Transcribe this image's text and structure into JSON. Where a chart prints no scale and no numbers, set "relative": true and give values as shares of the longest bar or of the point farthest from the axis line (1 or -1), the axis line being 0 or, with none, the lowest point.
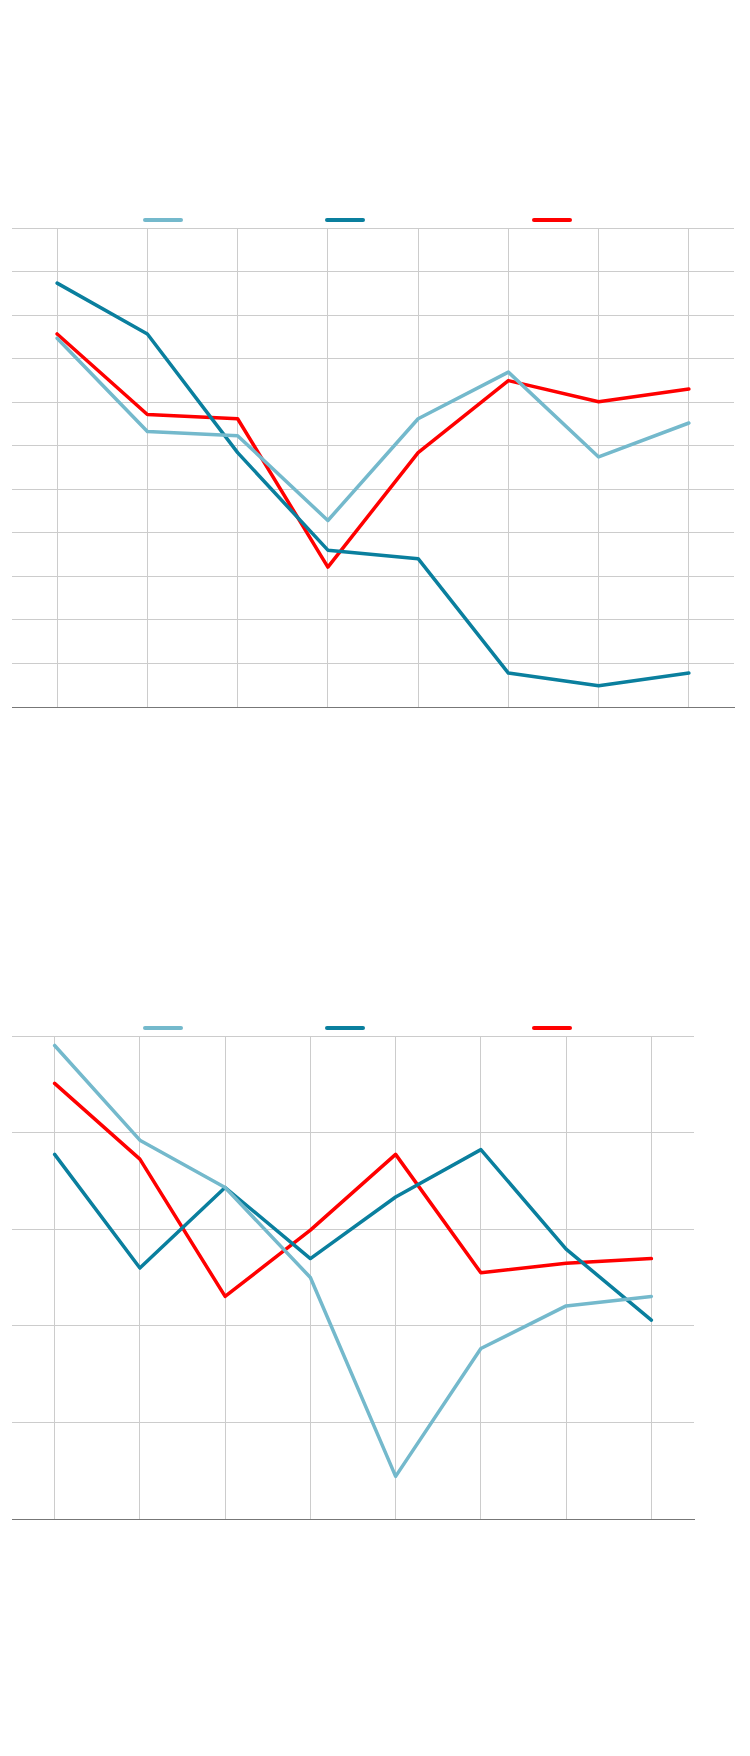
{
  "chart_data": [
    {
      "type": "line",
      "relative": true,
      "grid": true,
      "marker": "none",
      "line_style": "solid",
      "categories": [
        null,
        null,
        null,
        null,
        null,
        null,
        null,
        null
      ],
      "series": [
        {
          "color": "#74b9cc",
          "values": [
            0.87,
            0.65,
            0.64,
            0.44,
            0.68,
            0.79,
            0.59,
            0.67
          ]
        },
        {
          "color": "#0a7f9e",
          "values": [
            1,
            0.88,
            0.6,
            0.37,
            0.35,
            0.08,
            0.05,
            0.08
          ]
        },
        {
          "color": "#ff0000",
          "values": [
            0.88,
            0.69,
            0.68,
            0.33,
            0.6,
            0.77,
            0.72,
            0.75
          ]
        }
      ]
    },
    {
      "type": "line",
      "relative": true,
      "grid": true,
      "marker": "none",
      "line_style": "solid",
      "categories": [
        null,
        null,
        null,
        null,
        null,
        null,
        null,
        null
      ],
      "series": [
        {
          "color": "#74b9cc",
          "values": [
            1,
            0.8,
            0.7,
            0.51,
            0.09,
            0.36,
            0.45,
            0.47
          ]
        },
        {
          "color": "#0a7f9e",
          "values": [
            0.77,
            0.53,
            0.7,
            0.55,
            0.68,
            0.78,
            0.57,
            0.42
          ]
        },
        {
          "color": "#ff0000",
          "values": [
            0.92,
            0.76,
            0.47,
            0.61,
            0.77,
            0.52,
            0.54,
            0.55
          ]
        }
      ]
    }
  ]
}
